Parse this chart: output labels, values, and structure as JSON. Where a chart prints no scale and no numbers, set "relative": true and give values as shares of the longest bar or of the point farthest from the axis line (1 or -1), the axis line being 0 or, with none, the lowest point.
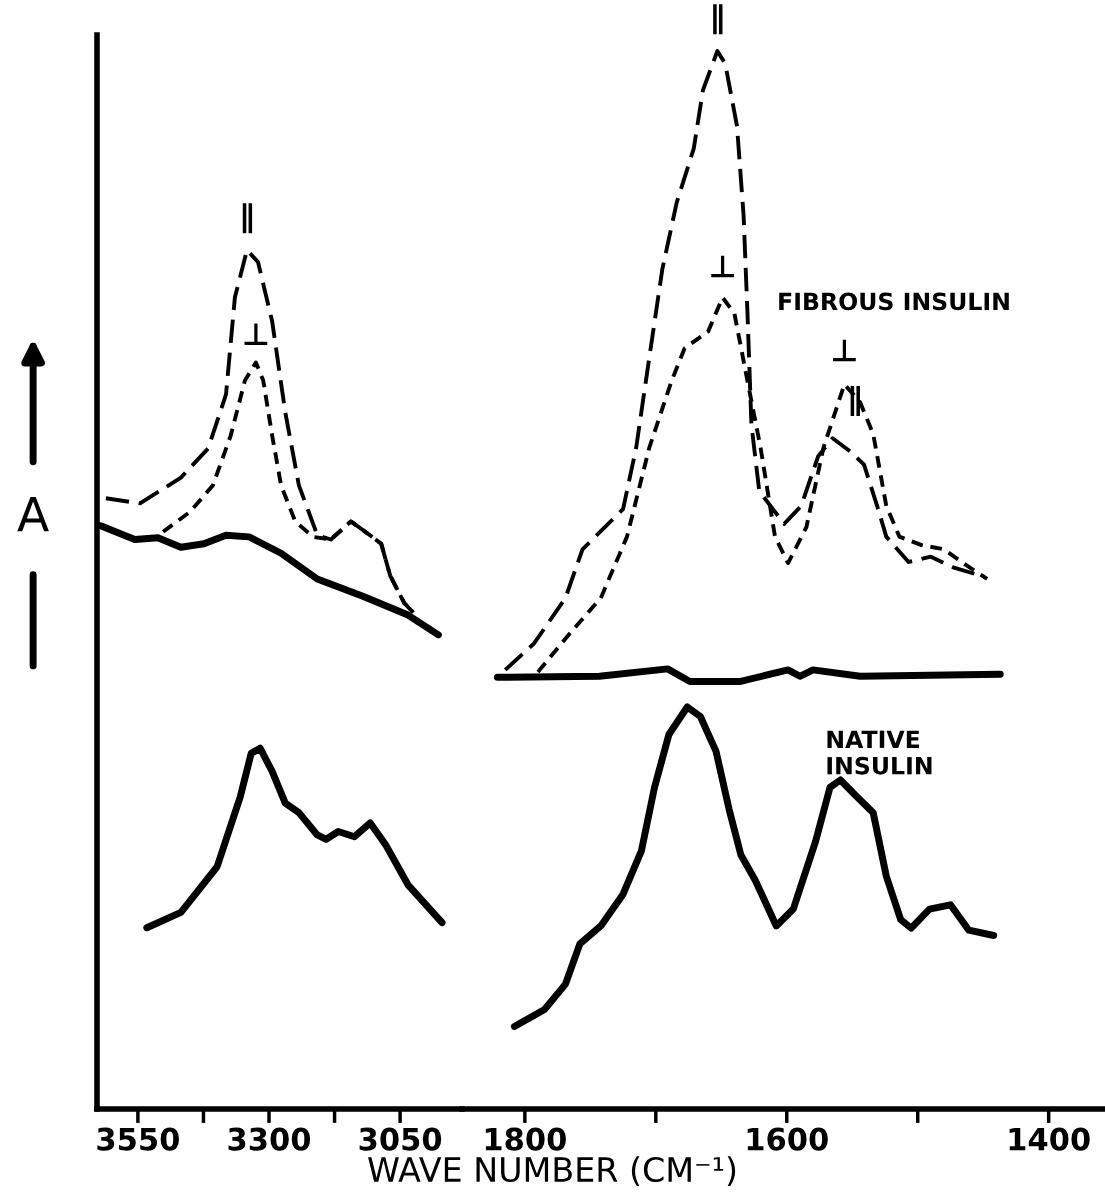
{
  "chart_data": [
    {
      "type": "line",
      "relative": true,
      "ylabel": "A",
      "xlabel": "WAVE NUMBER (CM⁻¹)",
      "xlim": [
        3628,
        2932
      ],
      "xticks": [
        3550,
        {
          "value": 3425,
          "label": null
        },
        3300,
        {
          "value": 3175,
          "label": null
        },
        3050
      ],
      "grid": false,
      "legend": false,
      "marker": "none",
      "series": [
        {
          "color": "#000000",
          "line_style": "dashed",
          "x": [
            3611,
            3546,
            3468,
            3416,
            3382,
            3365,
            3342,
            3321,
            3294,
            3269,
            3243,
            3208,
            3182,
            3144,
            3121,
            3086,
            3069,
            3042,
            3025
          ],
          "values": [
            0.711,
            0.705,
            0.735,
            0.769,
            0.832,
            0.945,
            1,
            0.986,
            0.917,
            0.811,
            0.726,
            0.668,
            0.663,
            0.684,
            0.674,
            0.658,
            0.621,
            0.589,
            0.578
          ]
        },
        {
          "color": "#000000",
          "line_style": "dashed",
          "x": [
            3502,
            3451,
            3407,
            3373,
            3346,
            3325,
            3311,
            3294,
            3277,
            3250,
            3216,
            3182,
            3144,
            3121,
            3086,
            3069,
            3042,
            3025
          ],
          "values": [
            0.672,
            0.695,
            0.726,
            0.784,
            0.848,
            0.869,
            0.848,
            0.784,
            0.726,
            0.684,
            0.666,
            0.663,
            0.684,
            0.674,
            0.658,
            0.621,
            0.589,
            0.578
          ]
        },
        {
          "color": "#000000",
          "line_style": "solid",
          "x": [
            3621,
            3556,
            3512,
            3468,
            3424,
            3382,
            3338,
            3277,
            3208,
            3121,
            3035,
            2977
          ],
          "values": [
            0.679,
            0.663,
            0.665,
            0.654,
            0.658,
            0.668,
            0.666,
            0.647,
            0.617,
            0.597,
            0.575,
            0.552
          ]
        },
        {
          "color": "#000000",
          "line_style": "solid",
          "x": [
            3533,
            3468,
            3399,
            3355,
            3334,
            3317,
            3294,
            3269,
            3243,
            3208,
            3191,
            3168,
            3137,
            3107,
            3078,
            3035,
            2970
          ],
          "values": [
            0.211,
            0.229,
            0.282,
            0.363,
            0.414,
            0.42,
            0.393,
            0.356,
            0.345,
            0.319,
            0.314,
            0.323,
            0.317,
            0.333,
            0.308,
            0.261,
            0.217
          ]
        }
      ],
      "annotations": [
        {
          "text": "∥",
          "x": 3342,
          "y": 1
        },
        {
          "text": "⊥",
          "x": 3325,
          "y": 0.869
        }
      ]
    },
    {
      "type": "line",
      "relative": true,
      "xlim": [
        1848,
        1357
      ],
      "xticks": [
        1800,
        {
          "value": 1700,
          "label": null
        },
        1600,
        {
          "value": 1500,
          "label": null
        },
        1400
      ],
      "grid": false,
      "legend": false,
      "marker": "none",
      "series": [
        {
          "color": "#000000",
          "line_style": "dashed",
          "x": [
            1815,
            1793,
            1769,
            1756,
            1725,
            1715,
            1705,
            1695,
            1684,
            1671,
            1664,
            1653,
            1647,
            1638,
            1633,
            1630,
            1627,
            1621,
            1602,
            1589,
            1576,
            1565,
            1551,
            1541,
            1531,
            1524,
            1507,
            1490,
            1473,
            1449
          ],
          "values": [
            0.415,
            0.44,
            0.483,
            0.529,
            0.567,
            0.625,
            0.71,
            0.794,
            0.857,
            0.908,
            0.963,
            1,
            0.988,
            0.929,
            0.845,
            0.752,
            0.647,
            0.584,
            0.553,
            0.57,
            0.617,
            0.634,
            0.621,
            0.609,
            0.57,
            0.541,
            0.517,
            0.522,
            0.512,
            0.503
          ]
        },
        {
          "color": "#000000",
          "line_style": "dashed",
          "x": [
            1790,
            1766,
            1742,
            1722,
            1705,
            1688,
            1678,
            1660,
            1649,
            1640,
            1630,
            1620,
            1609,
            1599,
            1585,
            1572,
            1556,
            1544,
            1534,
            1524,
            1514,
            1497,
            1480,
            1463,
            1447
          ],
          "values": [
            0.413,
            0.449,
            0.483,
            0.541,
            0.625,
            0.688,
            0.719,
            0.735,
            0.767,
            0.752,
            0.688,
            0.625,
            0.541,
            0.516,
            0.55,
            0.625,
            0.685,
            0.668,
            0.638,
            0.57,
            0.541,
            0.533,
            0.529,
            0.514,
            0.501
          ]
        },
        {
          "color": "#000000",
          "line_style": "solid",
          "x": [
            1821,
            1743,
            1691,
            1674,
            1636,
            1599,
            1590,
            1580,
            1544,
            1437
          ],
          "values": [
            0.408,
            0.409,
            0.416,
            0.404,
            0.404,
            0.415,
            0.409,
            0.415,
            0.409,
            0.411
          ]
        },
        {
          "color": "#000000",
          "line_style": "solid",
          "x": [
            1808,
            1785,
            1769,
            1758,
            1742,
            1725,
            1711,
            1701,
            1690,
            1676,
            1666,
            1654,
            1644,
            1635,
            1624,
            1608,
            1595,
            1578,
            1567,
            1559,
            1548,
            1534,
            1524,
            1513,
            1505,
            1491,
            1475,
            1461,
            1442
          ],
          "values": [
            0.078,
            0.094,
            0.118,
            0.156,
            0.173,
            0.203,
            0.244,
            0.304,
            0.354,
            0.38,
            0.371,
            0.338,
            0.283,
            0.24,
            0.216,
            0.173,
            0.189,
            0.253,
            0.304,
            0.311,
            0.297,
            0.28,
            0.22,
            0.179,
            0.171,
            0.189,
            0.193,
            0.169,
            0.164
          ]
        }
      ],
      "annotations": [
        {
          "text": "∥",
          "x": 1653,
          "y": 1
        },
        {
          "text": "⊥",
          "x": 1649,
          "y": 0.767
        },
        {
          "text": "⊥",
          "x": 1556,
          "y": 0.685
        },
        {
          "text": "∥",
          "x": 1565,
          "y": 0.634
        },
        "FIBROUS INSULIN",
        "NATIVE\nINSULIN"
      ]
    }
  ]
}
